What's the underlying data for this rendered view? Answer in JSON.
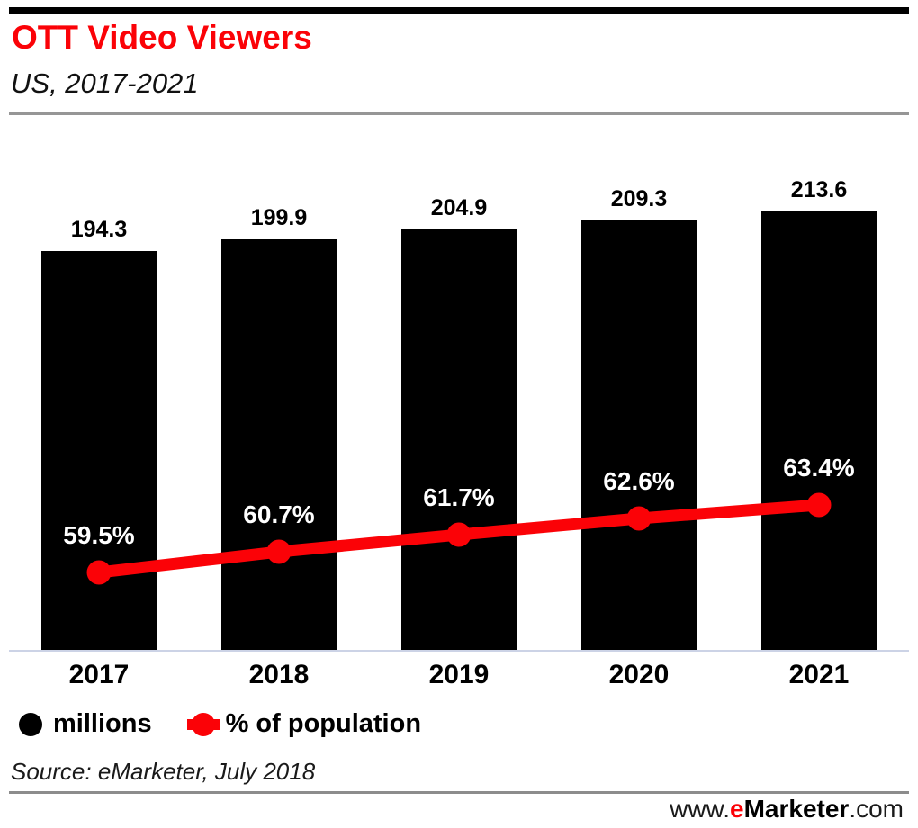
{
  "header": {
    "title": "OTT Video Viewers",
    "subtitle": "US, 2017-2021"
  },
  "chart_data": {
    "type": "bar",
    "subtype": "combo-bar-line",
    "title": "OTT Video Viewers",
    "subtitle": "US, 2017-2021",
    "categories": [
      "2017",
      "2018",
      "2019",
      "2020",
      "2021"
    ],
    "series": [
      {
        "name": "millions",
        "type": "bar",
        "color": "#000000",
        "values": [
          194.3,
          199.9,
          204.9,
          209.3,
          213.6
        ],
        "data_labels": [
          "194.3",
          "199.9",
          "204.9",
          "209.3",
          "213.6"
        ]
      },
      {
        "name": "% of population",
        "type": "line",
        "color": "#fb0207",
        "values": [
          59.5,
          60.7,
          61.7,
          62.6,
          63.4
        ],
        "data_labels": [
          "59.5%",
          "60.7%",
          "61.7%",
          "62.6%",
          "63.4%"
        ]
      }
    ],
    "grid": false,
    "axes_visible": false,
    "legend_position": "bottom-left"
  },
  "legend": {
    "items": [
      {
        "label": "millions",
        "color": "#000000",
        "marker": "circle"
      },
      {
        "label": "% of population",
        "color": "#fb0207",
        "marker": "line-dot"
      }
    ]
  },
  "source_text": "Source: eMarketer, July 2018",
  "footer": {
    "prefix": "www.",
    "brand_e": "e",
    "brand_rest": "Marketer",
    "suffix": ".com"
  },
  "colors": {
    "accent_red": "#fb0207",
    "bar_black": "#000000",
    "axis_line": "#ccd3e6",
    "header_rule": "#969696",
    "footer_rule": "#8c8c8c",
    "top_rule": "#000000",
    "pct_label_text": "#ffffff"
  }
}
